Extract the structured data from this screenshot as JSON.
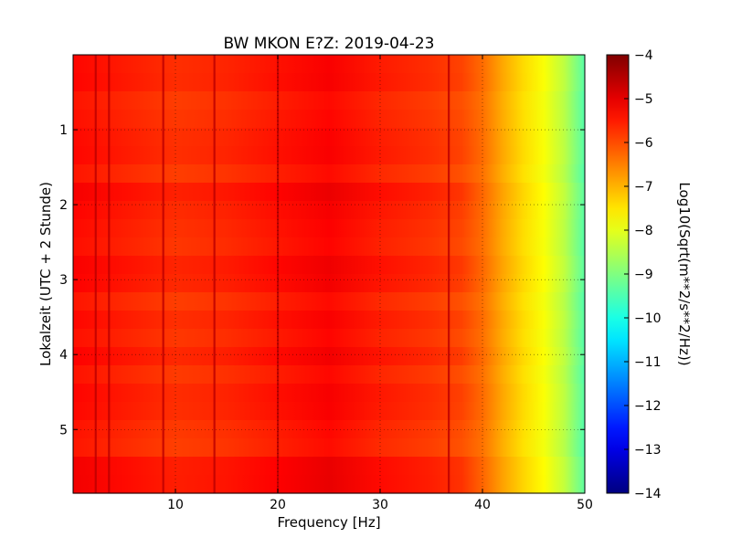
{
  "chart_data": {
    "type": "heatmap",
    "title": "BW MKON E?Z: 2019-04-23",
    "xlabel": "Frequency [Hz]",
    "ylabel": "Lokalzeit (UTC + 2 Stunde)",
    "xlim": [
      0,
      50
    ],
    "ylim": [
      5.85,
      0
    ],
    "x_ticks": [
      10,
      20,
      30,
      40,
      50
    ],
    "y_ticks": [
      1,
      2,
      3,
      4,
      5
    ],
    "grid": true,
    "colormap": "jet",
    "colorbar": {
      "label": "Log10(Sqrt(m**2/s**2/Hz))",
      "range": [
        -14,
        -4
      ],
      "ticks": [
        -4,
        -5,
        -6,
        -7,
        -8,
        -9,
        -10,
        -11,
        -12,
        -13,
        -14
      ]
    },
    "frequency_profile": {
      "frequency_hz": [
        0,
        5,
        10,
        15,
        20,
        25,
        30,
        35,
        38,
        40,
        42,
        44,
        46,
        48,
        50
      ],
      "log10_amplitude": [
        -5.3,
        -5.5,
        -5.7,
        -5.6,
        -5.4,
        -5.2,
        -5.5,
        -5.7,
        -5.9,
        -6.3,
        -6.9,
        -7.4,
        -7.8,
        -8.4,
        -9.4
      ]
    },
    "strong_lines_hz": [
      2.2,
      3.5,
      8.8,
      13.8,
      20.0,
      36.7
    ]
  }
}
